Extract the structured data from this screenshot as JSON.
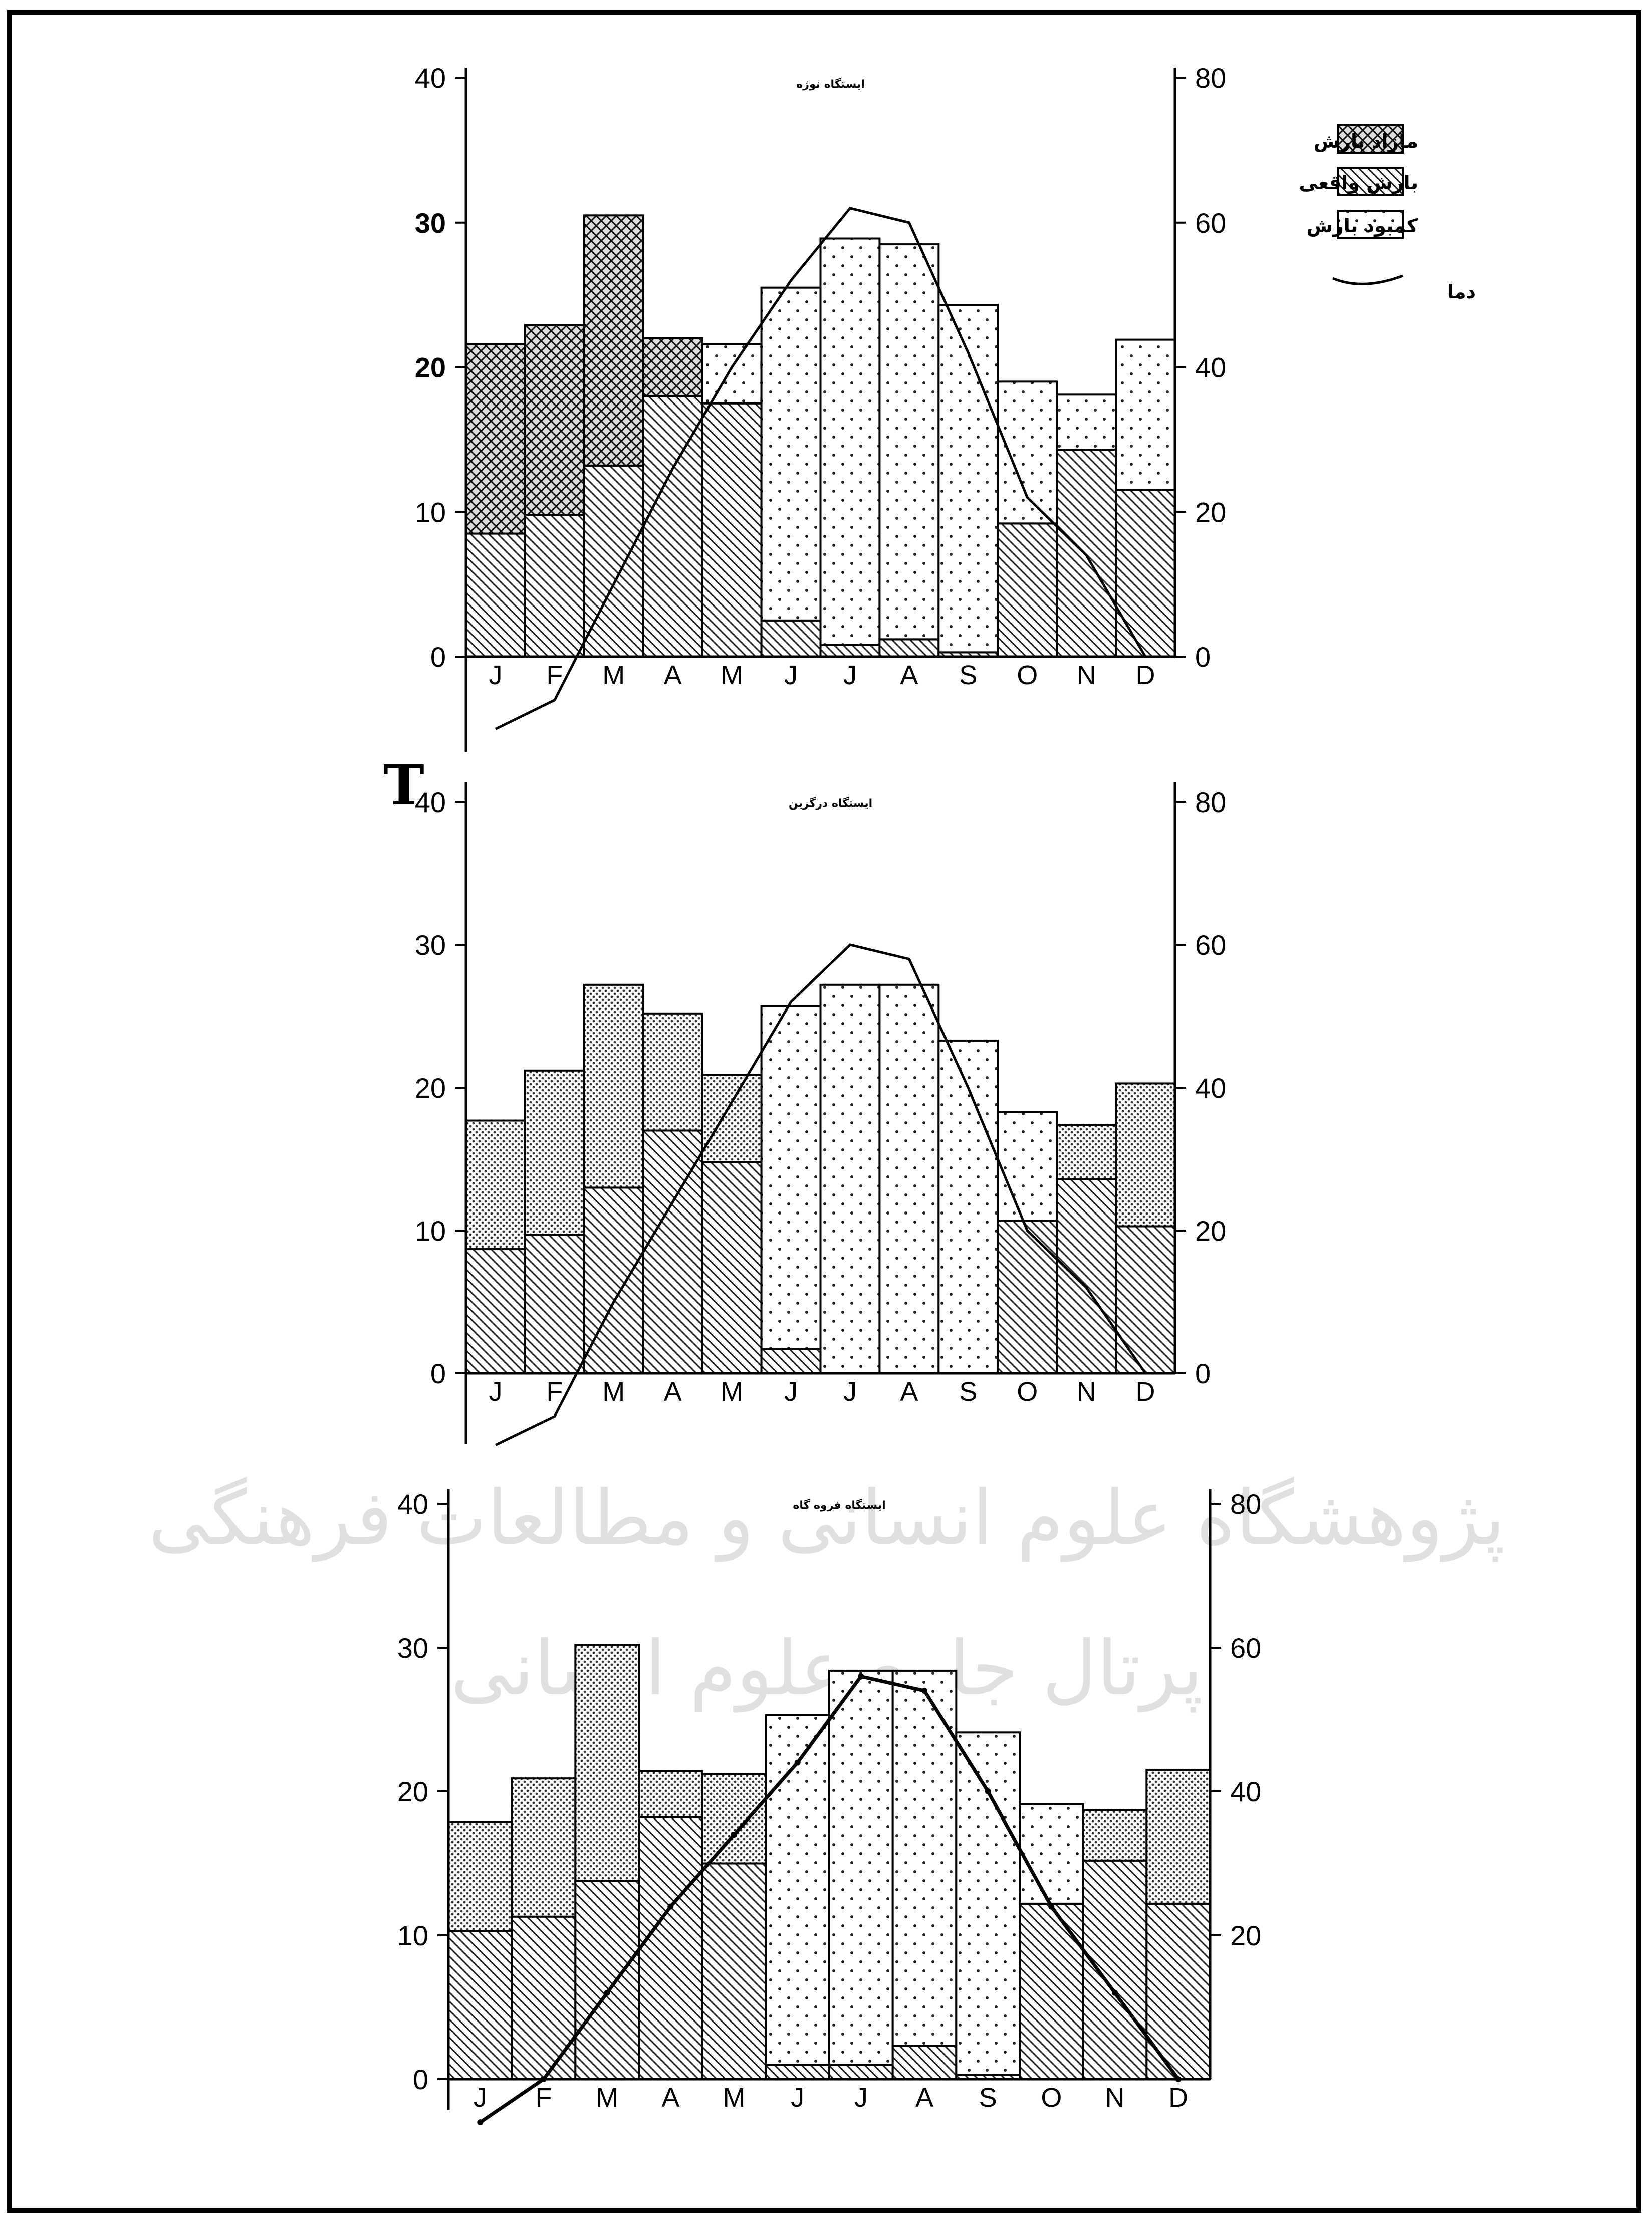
{
  "page_mark": "T",
  "watermark": {
    "line1": "پژوهشگاه علوم انسانی و مطالعات فرهنگی",
    "line2": "پرتال جامع علوم انسانی"
  },
  "legend": {
    "items": [
      {
        "key": "surplus",
        "label": "مازاد بارش",
        "pattern": "crosshatch"
      },
      {
        "key": "actual",
        "label": "بارش واقعی",
        "pattern": "diagonal"
      },
      {
        "key": "deficit",
        "label": "کمبود بارش",
        "pattern": "dots"
      },
      {
        "key": "temp",
        "label": "دما",
        "pattern": "line"
      }
    ]
  },
  "chart_data": [
    {
      "type": "bar",
      "title": "ایستگاه نوژه",
      "categories": [
        "J",
        "F",
        "M",
        "A",
        "M",
        "J",
        "J",
        "A",
        "S",
        "O",
        "N",
        "D"
      ],
      "ylim_left": [
        0,
        40
      ],
      "ylim_right": [
        0,
        80
      ],
      "yticks_left": [
        "0",
        "10",
        "20",
        "30",
        "40"
      ],
      "yticks_right": [
        "0",
        "20",
        "40",
        "60",
        "80"
      ],
      "series": [
        {
          "key": "actual",
          "values": [
            8.5,
            9.8,
            13.2,
            18,
            17.5,
            2.5,
            0.8,
            1.2,
            0.3,
            9.2,
            14.3,
            11.5
          ]
        },
        {
          "key": "surplus",
          "values": [
            13.1,
            13.1,
            17.3,
            4,
            0,
            0,
            0,
            0,
            0,
            0,
            0,
            0
          ]
        },
        {
          "key": "deficit",
          "values": [
            0,
            0,
            0,
            0,
            4.1,
            23,
            28.1,
            27.3,
            24,
            9.8,
            3.8,
            10.4
          ]
        }
      ],
      "temperature": [
        -5,
        -3,
        5,
        13,
        20,
        26,
        31,
        30,
        21,
        11,
        7,
        0
      ]
    },
    {
      "type": "bar",
      "title": "ایستگاه درگزین",
      "categories": [
        "J",
        "F",
        "M",
        "A",
        "M",
        "J",
        "J",
        "A",
        "S",
        "O",
        "N",
        "D"
      ],
      "ylim_left": [
        0,
        40
      ],
      "ylim_right": [
        0,
        80
      ],
      "yticks_left": [
        "0",
        "10",
        "20",
        "30",
        "40"
      ],
      "yticks_right": [
        "0",
        "20",
        "40",
        "60",
        "80"
      ],
      "series": [
        {
          "key": "actual",
          "values": [
            8.7,
            9.7,
            13,
            17,
            14.8,
            1.7,
            0,
            0,
            0,
            10.7,
            13.6,
            10.3
          ]
        },
        {
          "key": "deficit",
          "values": [
            9,
            11.5,
            14.2,
            8.2,
            6.1,
            24,
            27.2,
            27.2,
            23.3,
            7.6,
            3.8,
            10
          ]
        }
      ],
      "temperature": [
        -5,
        -3,
        5,
        12,
        19,
        26,
        30,
        29,
        20,
        10,
        6,
        0
      ]
    },
    {
      "type": "bar",
      "title": "ایستگاه فروه گاه",
      "categories": [
        "J",
        "F",
        "M",
        "A",
        "M",
        "J",
        "J",
        "A",
        "S",
        "O",
        "N",
        "D"
      ],
      "ylim_left": [
        0,
        40
      ],
      "ylim_right": [
        0,
        80
      ],
      "yticks_left": [
        "0",
        "10",
        "20",
        "30",
        "40"
      ],
      "yticks_right": [
        "20",
        "40",
        "60",
        "80"
      ],
      "series": [
        {
          "key": "actual",
          "values": [
            10.3,
            11.3,
            13.8,
            18.2,
            15,
            1,
            1,
            2.3,
            0.3,
            12.2,
            15.2,
            12.2
          ]
        },
        {
          "key": "deficit",
          "values": [
            7.6,
            9.6,
            16.4,
            3.2,
            6.2,
            24.3,
            27.4,
            26.1,
            23.8,
            6.9,
            3.5,
            9.3
          ]
        }
      ],
      "temperature": [
        -3,
        0,
        6,
        12,
        17,
        22,
        28,
        27,
        20,
        12,
        6,
        0
      ]
    }
  ]
}
